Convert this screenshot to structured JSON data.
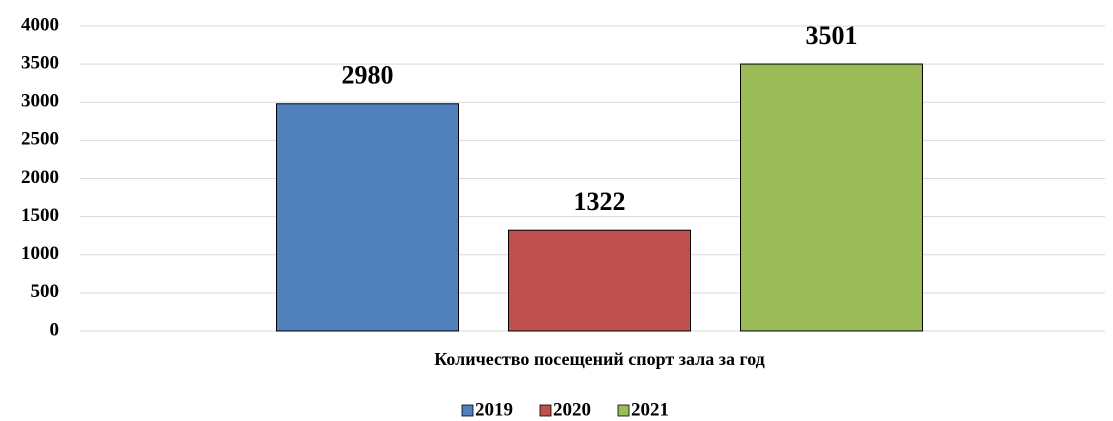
{
  "chart_data": {
    "type": "bar",
    "categories": [
      "Количество посещений спорт зала за год"
    ],
    "series": [
      {
        "name": "2019",
        "color": "#4f81bd",
        "values": [
          2980
        ]
      },
      {
        "name": "2020",
        "color": "#c0504d",
        "values": [
          1322
        ]
      },
      {
        "name": "2021",
        "color": "#9bbb59",
        "values": [
          3501
        ]
      }
    ],
    "ylim": [
      0,
      4000
    ],
    "yticks": [
      0,
      500,
      1000,
      1500,
      2000,
      2500,
      3000,
      3500,
      4000
    ],
    "grid": true,
    "legend": "bottom",
    "data_labels": true
  }
}
